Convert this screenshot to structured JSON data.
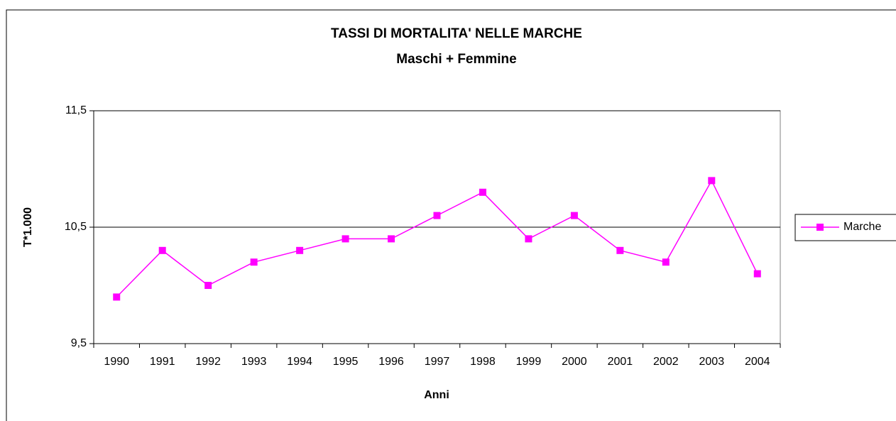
{
  "chart_data": {
    "type": "line",
    "title": "TASSI DI MORTALITA' NELLE MARCHE",
    "subtitle": "Maschi + Femmine",
    "x_label": "Anni",
    "y_label": "T*1.000",
    "categories": [
      "1990",
      "1991",
      "1992",
      "1993",
      "1994",
      "1995",
      "1996",
      "1997",
      "1998",
      "1999",
      "2000",
      "2001",
      "2002",
      "2003",
      "2004"
    ],
    "series": [
      {
        "name": "Marche",
        "color": "#ff00ff",
        "values": [
          9.9,
          10.3,
          10.0,
          10.2,
          10.3,
          10.4,
          10.4,
          10.6,
          10.8,
          10.4,
          10.6,
          10.3,
          10.2,
          10.9,
          10.1
        ]
      }
    ],
    "ylim": [
      9.5,
      11.5
    ],
    "yticks": [
      {
        "value": 9.5,
        "label": "9,5"
      },
      {
        "value": 10.5,
        "label": "10,5"
      },
      {
        "value": 11.5,
        "label": "11,5"
      }
    ],
    "grid": true,
    "legend": "right"
  }
}
